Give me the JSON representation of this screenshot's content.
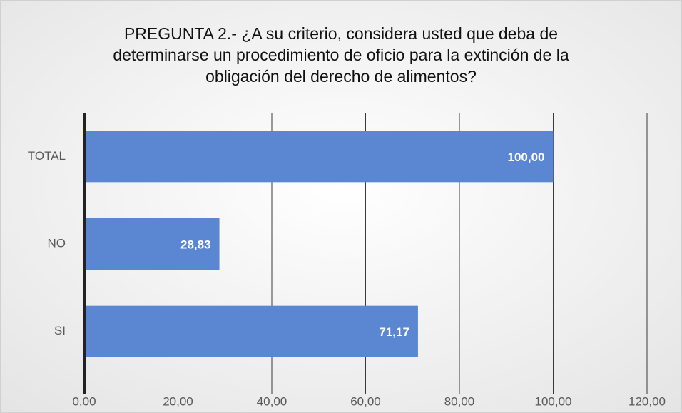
{
  "chart_data": {
    "type": "bar",
    "orientation": "horizontal",
    "title": [
      "PREGUNTA 2.- ¿A su criterio, considera usted que deba de",
      "determinarse un procedimiento de oficio para la extinción de la",
      "obligación del derecho de alimentos?"
    ],
    "categories": [
      "SI",
      "NO",
      "TOTAL"
    ],
    "values": [
      71.17,
      28.83,
      100
    ],
    "value_labels": [
      "71,17",
      "28,83",
      "100,00"
    ],
    "color": "#5b86d1",
    "xlim": [
      0,
      120
    ],
    "xticks": [
      {
        "value": 0,
        "label": "0,00"
      },
      {
        "value": 20,
        "label": "20,00"
      },
      {
        "value": 40,
        "label": "40,00"
      },
      {
        "value": 60,
        "label": "60,00"
      },
      {
        "value": 80,
        "label": "80,00"
      },
      {
        "value": 100,
        "label": "100,00"
      },
      {
        "value": 120,
        "label": "120,00"
      }
    ],
    "grid": true
  }
}
